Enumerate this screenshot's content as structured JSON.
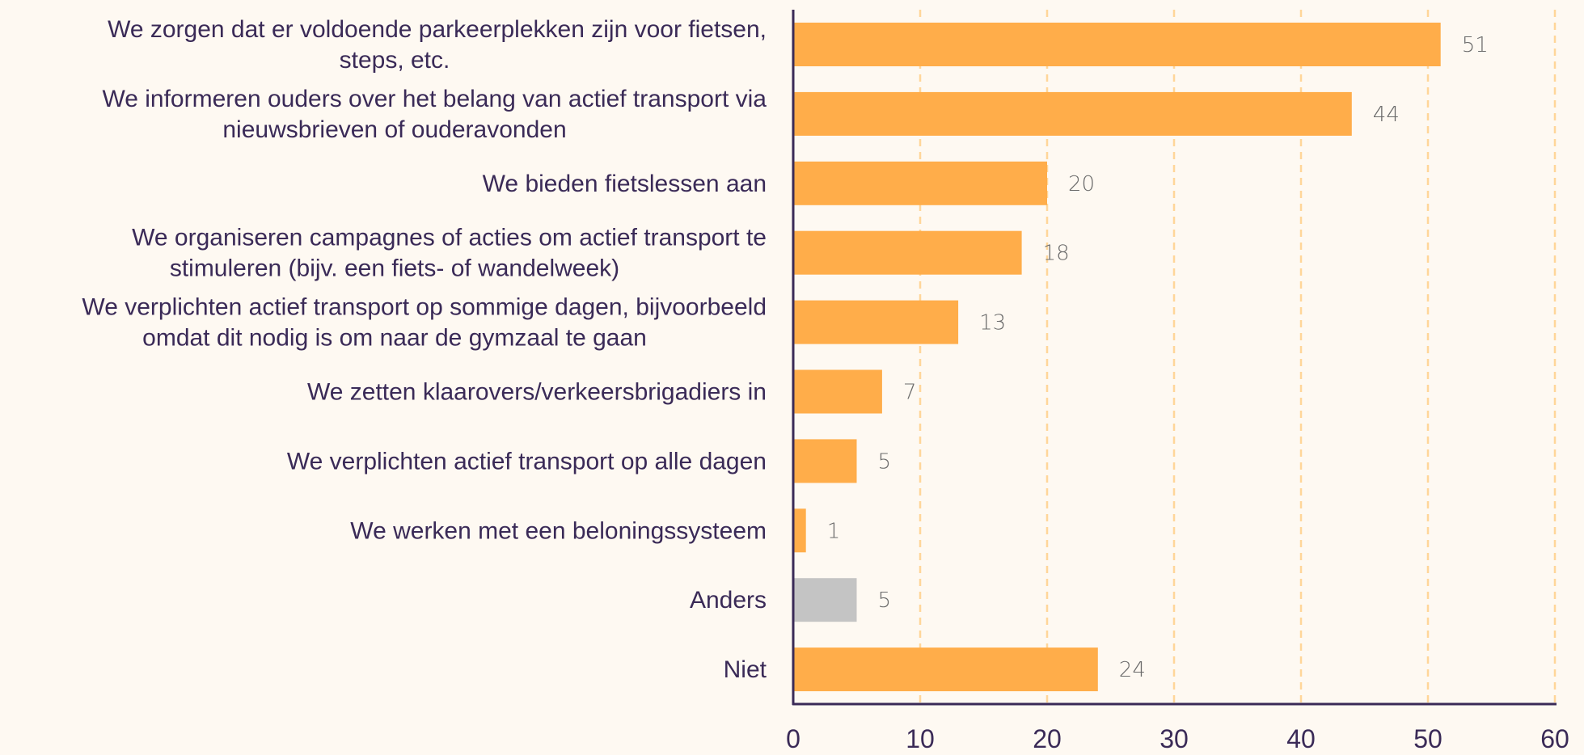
{
  "chart_data": {
    "type": "bar",
    "orientation": "horizontal",
    "categories": [
      [
        "We zorgen dat er voldoende parkeerplekken zijn voor fietsen,",
        "steps, etc."
      ],
      [
        "We informeren ouders over het belang van actief transport via",
        "nieuwsbrieven of ouderavonden"
      ],
      [
        "We bieden fietslessen aan"
      ],
      [
        "We organiseren campagnes of acties om actief transport te",
        "stimuleren (bijv. een fiets- of wandelweek)"
      ],
      [
        "We verplichten actief transport op sommige dagen, bijvoorbeeld",
        "omdat dit nodig is om naar de gymzaal te gaan"
      ],
      [
        "We zetten klaarovers/verkeersbrigadiers in"
      ],
      [
        "We verplichten actief transport op alle dagen"
      ],
      [
        "We werken met een beloningssysteem"
      ],
      [
        "Anders"
      ],
      [
        "Niet"
      ]
    ],
    "values": [
      51,
      44,
      20,
      18,
      13,
      7,
      5,
      1,
      5,
      24
    ],
    "value_labels": [
      "51",
      "44",
      "20",
      "18",
      "13",
      "7",
      "5",
      "1",
      "5",
      "24"
    ],
    "bar_colors": [
      "#ffad4a",
      "#ffad4a",
      "#ffad4a",
      "#ffad4a",
      "#ffad4a",
      "#ffad4a",
      "#ffad4a",
      "#ffad4a",
      "#c4c4c4",
      "#ffad4a"
    ],
    "xlim": [
      0,
      60
    ],
    "xticks": [
      0,
      10,
      20,
      30,
      40,
      50,
      60
    ],
    "xtick_labels": [
      "0",
      "10",
      "20",
      "30",
      "40",
      "50",
      "60"
    ],
    "grid": "vertical-dashed",
    "colors": {
      "bar": "#ffad4a",
      "bar_other": "#c4c4c4",
      "grid": "#ffd699",
      "axis": "#3a2a57",
      "text": "#3a2a57",
      "value_text": "#6a6a6a",
      "background": "#fef9f2"
    }
  }
}
